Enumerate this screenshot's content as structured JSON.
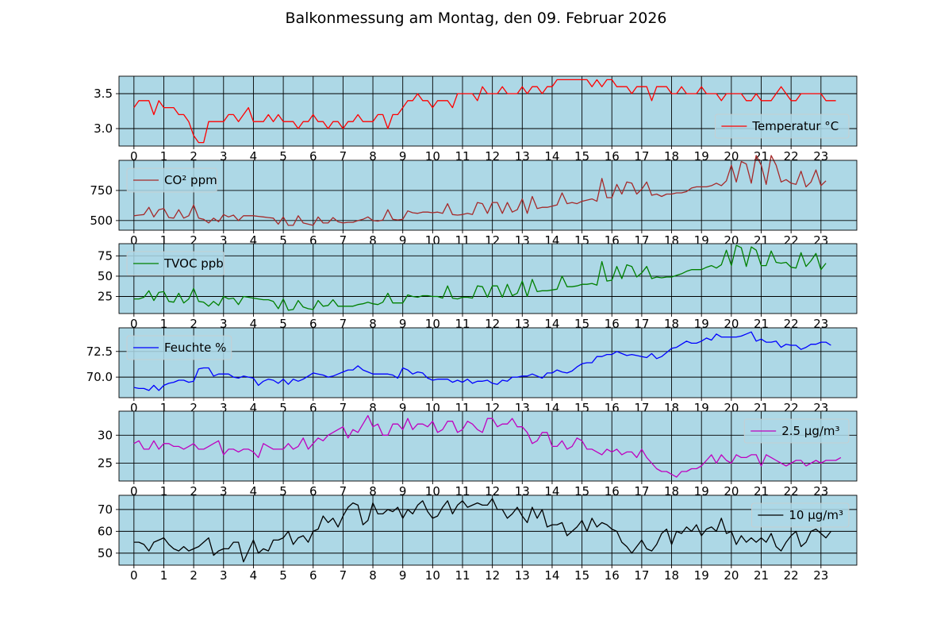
{
  "title": "Balkonmessung am Montag, den 09. Februar 2026",
  "colors": {
    "panel_background": "#add8e6",
    "grid": "#000000"
  },
  "chart_data": [
    {
      "type": "line",
      "series": [
        {
          "name": "Temperatur °C",
          "color": "#ff0000",
          "values": [
            3.3,
            3.4,
            3.4,
            3.4,
            3.2,
            3.4,
            3.3,
            3.3,
            3.3,
            3.2,
            3.2,
            3.1,
            2.9,
            2.8,
            2.8,
            3.1,
            3.1,
            3.1,
            3.1,
            3.2,
            3.2,
            3.1,
            3.2,
            3.3,
            3.1,
            3.1,
            3.1,
            3.2,
            3.1,
            3.2,
            3.1,
            3.1,
            3.1,
            3.0,
            3.1,
            3.1,
            3.2,
            3.1,
            3.1,
            3.0,
            3.1,
            3.1,
            3.0,
            3.1,
            3.1,
            3.2,
            3.1,
            3.1,
            3.1,
            3.2,
            3.2,
            3.0,
            3.2,
            3.2,
            3.3,
            3.4,
            3.4,
            3.5,
            3.4,
            3.4,
            3.3,
            3.4,
            3.4,
            3.4,
            3.3,
            3.5,
            3.5,
            3.5,
            3.5,
            3.4,
            3.6,
            3.5,
            3.5,
            3.5,
            3.6,
            3.5,
            3.5,
            3.5,
            3.6,
            3.5,
            3.6,
            3.6,
            3.5,
            3.6,
            3.6,
            3.7,
            3.7,
            3.7,
            3.7,
            3.7,
            3.7,
            3.7,
            3.6,
            3.7,
            3.6,
            3.7,
            3.7,
            3.6,
            3.6,
            3.6,
            3.5,
            3.6,
            3.6,
            3.6,
            3.4,
            3.6,
            3.6,
            3.6,
            3.5,
            3.5,
            3.6,
            3.5,
            3.5,
            3.5,
            3.6,
            3.5,
            3.5,
            3.5,
            3.4,
            3.5,
            3.5,
            3.5,
            3.5,
            3.4,
            3.4,
            3.5,
            3.4,
            3.4,
            3.4,
            3.5,
            3.6,
            3.5,
            3.4,
            3.4,
            3.5,
            3.5,
            3.5,
            3.5,
            3.5,
            3.4,
            3.4,
            3.4
          ]
        }
      ],
      "x_ticks": [
        "0",
        "1",
        "2",
        "3",
        "4",
        "5",
        "6",
        "7",
        "8",
        "9",
        "10",
        "11",
        "12",
        "13",
        "14",
        "15",
        "16",
        "17",
        "18",
        "19",
        "20",
        "21",
        "22",
        "23"
      ],
      "y_ticks": [
        "3.0",
        "3.5"
      ],
      "xlim": [
        -0.5,
        24.2
      ],
      "ylim": [
        2.75,
        3.75
      ],
      "grid": true,
      "legend_position": "lower right"
    },
    {
      "type": "line",
      "series": [
        {
          "name": "CO² ppm",
          "color": "#a52a2a",
          "values": [
            540,
            545,
            550,
            610,
            530,
            590,
            600,
            525,
            520,
            590,
            520,
            540,
            630,
            520,
            510,
            480,
            520,
            490,
            550,
            530,
            545,
            500,
            540,
            540,
            540,
            535,
            530,
            525,
            520,
            470,
            530,
            460,
            460,
            540,
            480,
            470,
            460,
            530,
            480,
            480,
            525,
            490,
            480,
            485,
            485,
            500,
            510,
            530,
            500,
            495,
            505,
            590,
            510,
            505,
            510,
            580,
            565,
            560,
            570,
            570,
            565,
            570,
            560,
            640,
            550,
            545,
            550,
            560,
            550,
            650,
            640,
            560,
            650,
            650,
            560,
            650,
            570,
            590,
            680,
            560,
            700,
            600,
            610,
            610,
            620,
            630,
            730,
            640,
            650,
            640,
            660,
            670,
            680,
            660,
            850,
            690,
            690,
            800,
            720,
            820,
            810,
            720,
            760,
            820,
            710,
            720,
            700,
            720,
            720,
            730,
            730,
            740,
            770,
            780,
            780,
            780,
            790,
            810,
            790,
            830,
            960,
            820,
            990,
            970,
            810,
            1040,
            960,
            800,
            1040,
            960,
            820,
            840,
            810,
            800,
            910,
            780,
            820,
            920,
            790,
            830
          ]
        }
      ],
      "x_ticks": [
        "0",
        "1",
        "2",
        "3",
        "4",
        "5",
        "6",
        "7",
        "8",
        "9",
        "10",
        "11",
        "12",
        "13",
        "14",
        "15",
        "16",
        "17",
        "18",
        "19",
        "20",
        "21",
        "22",
        "23"
      ],
      "y_ticks": [
        "500",
        "750"
      ],
      "xlim": [
        -0.5,
        24.2
      ],
      "ylim": [
        420,
        1000
      ],
      "grid": true,
      "legend_position": "upper left"
    },
    {
      "type": "line",
      "series": [
        {
          "name": "TVOC ppb",
          "color": "#008000",
          "values": [
            22,
            22,
            24,
            32,
            20,
            30,
            31,
            19,
            18,
            29,
            17,
            22,
            35,
            19,
            18,
            13,
            19,
            14,
            25,
            22,
            23,
            15,
            25,
            24,
            23,
            22,
            21,
            21,
            19,
            10,
            22,
            8,
            9,
            20,
            12,
            10,
            9,
            20,
            13,
            14,
            21,
            13,
            13,
            13,
            13,
            15,
            16,
            18,
            16,
            15,
            18,
            29,
            17,
            17,
            17,
            27,
            25,
            24,
            26,
            26,
            25,
            25,
            23,
            38,
            23,
            22,
            24,
            24,
            23,
            38,
            37,
            24,
            38,
            38,
            24,
            40,
            26,
            29,
            44,
            25,
            46,
            31,
            32,
            32,
            33,
            34,
            50,
            37,
            37,
            38,
            40,
            40,
            41,
            39,
            68,
            44,
            45,
            62,
            47,
            64,
            62,
            49,
            54,
            62,
            47,
            49,
            48,
            49,
            49,
            51,
            53,
            56,
            58,
            58,
            58,
            61,
            63,
            60,
            64,
            82,
            63,
            88,
            85,
            62,
            86,
            82,
            63,
            63,
            81,
            67,
            66,
            67,
            61,
            60,
            79,
            62,
            69,
            78,
            58,
            66
          ]
        }
      ],
      "x_ticks": [
        "0",
        "1",
        "2",
        "3",
        "4",
        "5",
        "6",
        "7",
        "8",
        "9",
        "10",
        "11",
        "12",
        "13",
        "14",
        "15",
        "16",
        "17",
        "18",
        "19",
        "20",
        "21",
        "22",
        "23"
      ],
      "y_ticks": [
        "25",
        "50",
        "75"
      ],
      "xlim": [
        -0.5,
        24.2
      ],
      "ylim": [
        4,
        90
      ],
      "grid": true,
      "legend_position": "upper left"
    },
    {
      "type": "line",
      "series": [
        {
          "name": "Feuchte %",
          "color": "#0000ff",
          "values": [
            69.0,
            68.9,
            68.9,
            68.7,
            69.2,
            68.7,
            69.2,
            69.4,
            69.5,
            69.7,
            69.7,
            69.5,
            69.6,
            70.8,
            70.9,
            70.9,
            70.1,
            70.3,
            70.3,
            70.3,
            70.0,
            69.9,
            70.1,
            70.0,
            69.9,
            69.2,
            69.6,
            69.8,
            69.7,
            69.4,
            69.8,
            69.3,
            69.8,
            69.6,
            69.8,
            70.1,
            70.4,
            70.3,
            70.2,
            70.0,
            70.1,
            70.3,
            70.5,
            70.7,
            70.7,
            71.1,
            70.7,
            70.5,
            70.3,
            70.3,
            70.3,
            70.3,
            70.2,
            69.9,
            70.9,
            70.7,
            70.3,
            70.5,
            70.4,
            69.9,
            69.7,
            69.8,
            69.8,
            69.8,
            69.5,
            69.7,
            69.5,
            69.8,
            69.4,
            69.6,
            69.6,
            69.7,
            69.4,
            69.3,
            69.7,
            69.6,
            70.0,
            70.0,
            70.1,
            70.1,
            70.3,
            70.1,
            69.9,
            70.4,
            70.4,
            70.7,
            70.5,
            70.4,
            70.6,
            71.0,
            71.3,
            71.4,
            71.4,
            72.0,
            72.0,
            72.2,
            72.2,
            72.5,
            72.3,
            72.1,
            72.2,
            72.1,
            72.0,
            71.9,
            72.3,
            71.8,
            72.0,
            72.4,
            72.8,
            72.9,
            73.2,
            73.5,
            73.3,
            73.3,
            73.5,
            73.8,
            73.6,
            74.2,
            73.9,
            73.9,
            73.9,
            73.9,
            74.0,
            74.2,
            74.4,
            73.5,
            73.7,
            73.4,
            73.4,
            73.5,
            72.9,
            73.2,
            73.1,
            73.1,
            72.7,
            72.9,
            73.2,
            73.2,
            73.4,
            73.4,
            73.1
          ]
        }
      ],
      "x_ticks": [
        "0",
        "1",
        "2",
        "3",
        "4",
        "5",
        "6",
        "7",
        "8",
        "9",
        "10",
        "11",
        "12",
        "13",
        "14",
        "15",
        "16",
        "17",
        "18",
        "19",
        "20",
        "21",
        "22",
        "23"
      ],
      "y_ticks": [
        "70.0",
        "72.5"
      ],
      "xlim": [
        -0.5,
        24.2
      ],
      "ylim": [
        68.0,
        74.8
      ],
      "grid": true,
      "legend_position": "upper left"
    },
    {
      "type": "line",
      "series": [
        {
          "name": "2.5 µg/m³",
          "color": "#bf00bf",
          "values": [
            28.5,
            29.0,
            27.5,
            27.5,
            29.0,
            27.5,
            28.5,
            28.5,
            28.0,
            28.0,
            27.5,
            28.0,
            28.5,
            27.5,
            27.5,
            28.0,
            28.5,
            29.0,
            26.5,
            27.5,
            27.5,
            27.0,
            27.5,
            27.5,
            27.0,
            26.0,
            28.5,
            28.0,
            27.5,
            27.5,
            27.5,
            28.5,
            27.5,
            28.0,
            29.5,
            27.5,
            28.5,
            29.5,
            29.0,
            30.0,
            30.5,
            31.0,
            31.5,
            29.5,
            31.0,
            30.5,
            32.0,
            33.5,
            31.5,
            32.0,
            30.0,
            30.0,
            32.0,
            32.0,
            31.0,
            33.0,
            31.0,
            32.0,
            32.0,
            31.5,
            32.5,
            30.5,
            31.0,
            32.5,
            32.5,
            30.5,
            31.0,
            32.5,
            32.0,
            31.0,
            30.5,
            33.0,
            33.0,
            31.5,
            32.0,
            32.0,
            33.0,
            31.5,
            31.5,
            30.5,
            28.5,
            29.0,
            30.5,
            30.5,
            28.0,
            28.0,
            29.0,
            27.5,
            28.0,
            29.5,
            29.0,
            27.5,
            27.5,
            27.0,
            26.5,
            27.5,
            27.0,
            27.5,
            26.5,
            27.0,
            27.0,
            26.0,
            27.5,
            26.0,
            25.0,
            24.0,
            23.5,
            23.5,
            23.0,
            22.5,
            23.5,
            23.5,
            24.0,
            24.0,
            24.5,
            25.5,
            26.5,
            25.0,
            26.5,
            25.5,
            25.0,
            26.5,
            26.0,
            26.0,
            26.5,
            26.5,
            24.5,
            26.5,
            26.0,
            25.5,
            25.0,
            24.5,
            25.0,
            25.5,
            25.5,
            24.5,
            25.0,
            25.5,
            25.0,
            25.5,
            25.5,
            25.5,
            26.0
          ]
        }
      ],
      "x_ticks": [
        "0",
        "1",
        "2",
        "3",
        "4",
        "5",
        "6",
        "7",
        "8",
        "9",
        "10",
        "11",
        "12",
        "13",
        "14",
        "15",
        "16",
        "17",
        "18",
        "19",
        "20",
        "21",
        "22",
        "23"
      ],
      "y_ticks": [
        "25",
        "30"
      ],
      "xlim": [
        -0.5,
        24.2
      ],
      "ylim": [
        21.8,
        34.3
      ],
      "grid": true,
      "legend_position": "upper right"
    },
    {
      "type": "line",
      "series": [
        {
          "name": "10 µg/m³",
          "color": "#000000",
          "values": [
            55,
            55,
            54,
            51,
            55,
            56,
            57,
            54,
            52,
            51,
            53,
            51,
            52,
            53,
            55,
            57,
            49,
            51,
            52,
            52,
            55,
            55,
            46,
            51,
            56,
            50,
            52,
            51,
            56,
            56,
            57,
            60,
            54,
            57,
            58,
            55,
            60,
            61,
            67,
            64,
            66,
            62,
            67,
            71,
            73,
            72,
            63,
            65,
            73,
            68,
            68,
            70,
            69,
            71,
            66,
            70,
            68,
            72,
            74,
            69,
            66,
            67,
            71,
            74,
            68,
            72,
            74,
            71,
            72,
            73,
            72,
            72,
            75,
            70,
            70,
            66,
            68,
            71,
            67,
            64,
            71,
            66,
            70,
            62,
            63,
            63,
            64,
            58,
            60,
            62,
            65,
            60,
            66,
            62,
            64,
            63,
            61,
            60,
            55,
            53,
            50,
            53,
            56,
            52,
            51,
            54,
            59,
            61,
            54,
            60,
            59,
            62,
            60,
            63,
            58,
            61,
            62,
            60,
            66,
            59,
            60,
            54,
            58,
            55,
            57,
            55,
            57,
            55,
            59,
            53,
            51,
            55,
            58,
            60,
            53,
            55,
            60,
            61,
            59,
            57,
            60
          ]
        }
      ],
      "x_ticks": [
        "0",
        "1",
        "2",
        "3",
        "4",
        "5",
        "6",
        "7",
        "8",
        "9",
        "10",
        "11",
        "12",
        "13",
        "14",
        "15",
        "16",
        "17",
        "18",
        "19",
        "20",
        "21",
        "22",
        "23"
      ],
      "y_ticks": [
        "50",
        "60",
        "70"
      ],
      "xlim": [
        -0.5,
        24.2
      ],
      "ylim": [
        44.5,
        76.5
      ],
      "grid": true,
      "legend_position": "upper right"
    }
  ]
}
